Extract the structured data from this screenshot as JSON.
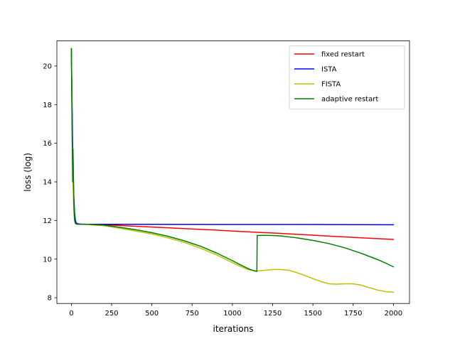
{
  "chart_data": {
    "type": "line",
    "title": "",
    "xlabel": "iterations",
    "ylabel": "loss (log)",
    "xlim": [
      -90,
      2100
    ],
    "ylim": [
      7.7,
      21.3
    ],
    "xticks": [
      0,
      250,
      500,
      750,
      1000,
      1250,
      1500,
      1750,
      2000
    ],
    "yticks": [
      8,
      10,
      12,
      14,
      16,
      18,
      20
    ],
    "grid": false,
    "legend_position": "top-right",
    "series": [
      {
        "name": "fixed restart",
        "color": "#ff0000",
        "x": [
          0,
          5,
          10,
          15,
          20,
          25,
          30,
          40,
          60,
          100,
          200,
          300,
          400,
          500,
          600,
          700,
          800,
          900,
          1000,
          1100,
          1200,
          1300,
          1400,
          1500,
          1600,
          1700,
          1800,
          1900,
          2000
        ],
        "y": [
          20.9,
          17.0,
          14.3,
          12.9,
          12.2,
          11.9,
          11.85,
          11.82,
          11.81,
          11.8,
          11.78,
          11.74,
          11.7,
          11.66,
          11.62,
          11.58,
          11.54,
          11.5,
          11.45,
          11.41,
          11.37,
          11.33,
          11.28,
          11.24,
          11.19,
          11.15,
          11.1,
          11.06,
          11.02
        ]
      },
      {
        "name": "ISTA",
        "color": "#0000ff",
        "x": [
          0,
          5,
          10,
          15,
          20,
          25,
          30,
          40,
          60,
          100,
          500,
          1000,
          1500,
          2000
        ],
        "y": [
          20.9,
          17.8,
          15.0,
          13.3,
          12.4,
          12.0,
          11.88,
          11.83,
          11.81,
          11.8,
          11.8,
          11.79,
          11.79,
          11.78
        ]
      },
      {
        "name": "FISTA",
        "color": "#bfbf00",
        "x": [
          0,
          5,
          10,
          15,
          20,
          25,
          30,
          40,
          60,
          100,
          200,
          300,
          400,
          500,
          600,
          700,
          800,
          900,
          1000,
          1050,
          1100,
          1150,
          1200,
          1250,
          1300,
          1350,
          1400,
          1450,
          1500,
          1550,
          1600,
          1650,
          1700,
          1750,
          1800,
          1850,
          1900,
          1950,
          2000
        ],
        "y": [
          20.9,
          16.5,
          14.0,
          12.6,
          12.0,
          11.85,
          11.82,
          11.8,
          11.8,
          11.79,
          11.73,
          11.6,
          11.45,
          11.3,
          11.1,
          10.87,
          10.57,
          10.22,
          9.82,
          9.62,
          9.45,
          9.38,
          9.42,
          9.46,
          9.46,
          9.42,
          9.3,
          9.15,
          8.99,
          8.84,
          8.72,
          8.7,
          8.72,
          8.72,
          8.65,
          8.52,
          8.4,
          8.32,
          8.28
        ]
      },
      {
        "name": "adaptive restart",
        "color": "#008000",
        "x": [
          0,
          3,
          6,
          8,
          10,
          12,
          14,
          16,
          18,
          20,
          25,
          30,
          40,
          60,
          100,
          200,
          300,
          400,
          500,
          600,
          700,
          800,
          900,
          1000,
          1050,
          1100,
          1140,
          1152,
          1153,
          1154,
          1200,
          1250,
          1300,
          1350,
          1400,
          1500,
          1600,
          1700,
          1800,
          1900,
          1950,
          2000
        ],
        "y": [
          20.9,
          18.0,
          15.5,
          14.0,
          15.7,
          14.9,
          13.6,
          12.8,
          12.3,
          12.0,
          11.85,
          11.82,
          11.8,
          11.8,
          11.8,
          11.76,
          11.65,
          11.52,
          11.37,
          11.18,
          10.95,
          10.67,
          10.32,
          9.92,
          9.7,
          9.5,
          9.38,
          9.36,
          10.2,
          11.22,
          11.23,
          11.22,
          11.2,
          11.15,
          11.1,
          10.97,
          10.8,
          10.58,
          10.3,
          9.98,
          9.8,
          9.6
        ]
      }
    ]
  }
}
